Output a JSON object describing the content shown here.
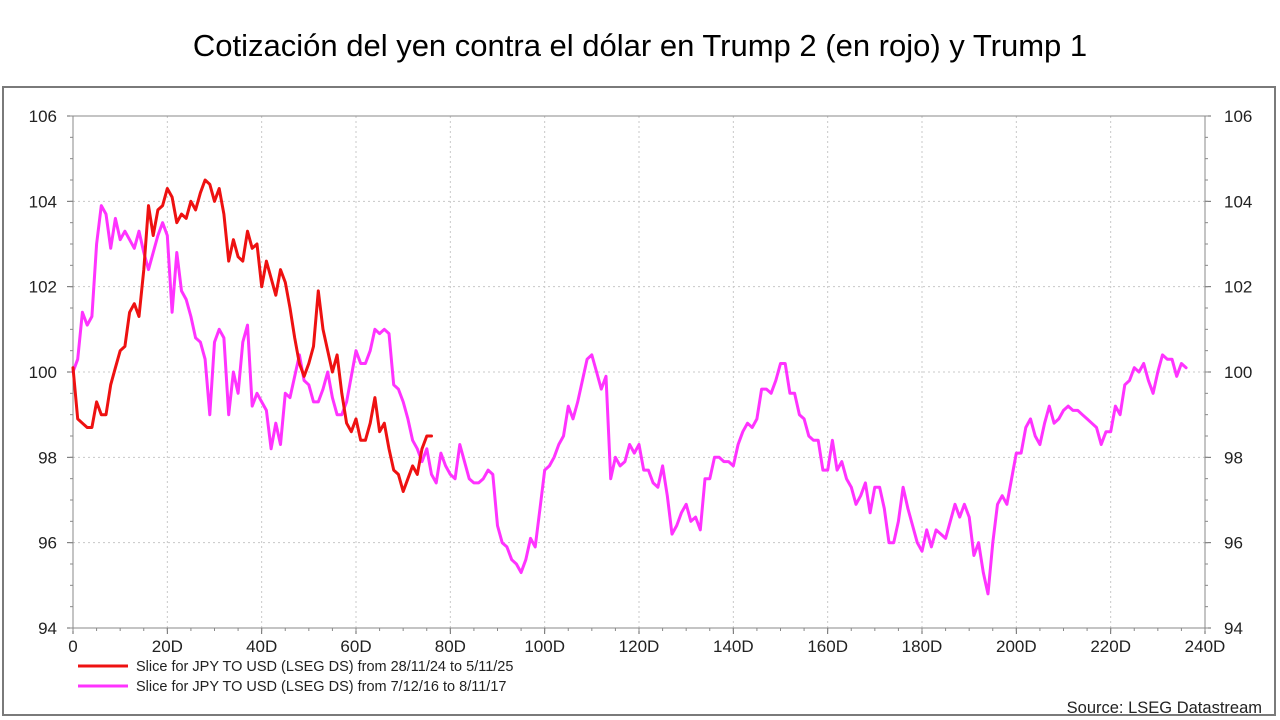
{
  "title": "Cotización del yen contra el dólar en Trump 2 (en rojo) y Trump 1",
  "chart_data": {
    "type": "line",
    "title": "Cotización del yen contra el dólar en Trump 2 (en rojo) y Trump 1",
    "xlabel": "",
    "ylabel": "",
    "xlim": [
      0,
      240
    ],
    "ylim": [
      94,
      106
    ],
    "x_ticks": [
      0,
      20,
      40,
      60,
      80,
      100,
      120,
      140,
      160,
      180,
      200,
      220,
      240
    ],
    "x_tick_labels": [
      "0",
      "20D",
      "40D",
      "60D",
      "80D",
      "100D",
      "120D",
      "140D",
      "160D",
      "180D",
      "200D",
      "220D",
      "240D"
    ],
    "y_ticks": [
      94,
      96,
      98,
      100,
      102,
      104,
      106
    ],
    "y_tick_labels": [
      "94",
      "96",
      "98",
      "100",
      "102",
      "104",
      "106"
    ],
    "grid": true,
    "legend_position": "bottom-left",
    "source": "Source: LSEG Datastream",
    "series": [
      {
        "name": "Slice for JPY TO USD (LSEG DS) from 28/11/24 to 5/11/25",
        "color": "#ee1111",
        "points": [
          [
            0,
            100.1
          ],
          [
            1,
            98.9
          ],
          [
            2,
            98.8
          ],
          [
            3,
            98.7
          ],
          [
            4,
            98.7
          ],
          [
            5,
            99.3
          ],
          [
            6,
            99.0
          ],
          [
            7,
            99.0
          ],
          [
            8,
            99.7
          ],
          [
            9,
            100.1
          ],
          [
            10,
            100.5
          ],
          [
            11,
            100.6
          ],
          [
            12,
            101.4
          ],
          [
            13,
            101.6
          ],
          [
            14,
            101.3
          ],
          [
            15,
            102.4
          ],
          [
            16,
            103.9
          ],
          [
            17,
            103.2
          ],
          [
            18,
            103.8
          ],
          [
            19,
            103.9
          ],
          [
            20,
            104.3
          ],
          [
            21,
            104.1
          ],
          [
            22,
            103.5
          ],
          [
            23,
            103.7
          ],
          [
            24,
            103.6
          ],
          [
            25,
            104.0
          ],
          [
            26,
            103.8
          ],
          [
            27,
            104.2
          ],
          [
            28,
            104.5
          ],
          [
            29,
            104.4
          ],
          [
            30,
            104.0
          ],
          [
            31,
            104.3
          ],
          [
            32,
            103.7
          ],
          [
            33,
            102.6
          ],
          [
            34,
            103.1
          ],
          [
            35,
            102.7
          ],
          [
            36,
            102.6
          ],
          [
            37,
            103.3
          ],
          [
            38,
            102.9
          ],
          [
            39,
            103.0
          ],
          [
            40,
            102.0
          ],
          [
            41,
            102.6
          ],
          [
            42,
            102.2
          ],
          [
            43,
            101.8
          ],
          [
            44,
            102.4
          ],
          [
            45,
            102.1
          ],
          [
            46,
            101.5
          ],
          [
            47,
            100.8
          ],
          [
            48,
            100.2
          ],
          [
            49,
            99.9
          ],
          [
            50,
            100.2
          ],
          [
            51,
            100.6
          ],
          [
            52,
            101.9
          ],
          [
            53,
            101.0
          ],
          [
            54,
            100.5
          ],
          [
            55,
            100.0
          ],
          [
            56,
            100.4
          ],
          [
            57,
            99.5
          ],
          [
            58,
            98.8
          ],
          [
            59,
            98.6
          ],
          [
            60,
            98.9
          ],
          [
            61,
            98.4
          ],
          [
            62,
            98.4
          ],
          [
            63,
            98.8
          ],
          [
            64,
            99.4
          ],
          [
            65,
            98.6
          ],
          [
            66,
            98.8
          ],
          [
            67,
            98.2
          ],
          [
            68,
            97.7
          ],
          [
            69,
            97.6
          ],
          [
            70,
            97.2
          ],
          [
            71,
            97.5
          ],
          [
            72,
            97.8
          ],
          [
            73,
            97.6
          ],
          [
            74,
            98.2
          ],
          [
            75,
            98.5
          ],
          [
            76,
            98.5
          ]
        ]
      },
      {
        "name": "Slice for JPY TO USD (LSEG DS) from 7/12/16 to 8/11/17",
        "color": "#ff33ff",
        "points": [
          [
            0,
            100.0
          ],
          [
            1,
            100.3
          ],
          [
            2,
            101.4
          ],
          [
            3,
            101.1
          ],
          [
            4,
            101.3
          ],
          [
            5,
            103.0
          ],
          [
            6,
            103.9
          ],
          [
            7,
            103.7
          ],
          [
            8,
            102.9
          ],
          [
            9,
            103.6
          ],
          [
            10,
            103.1
          ],
          [
            11,
            103.3
          ],
          [
            12,
            103.1
          ],
          [
            13,
            102.9
          ],
          [
            14,
            103.3
          ],
          [
            15,
            102.8
          ],
          [
            16,
            102.4
          ],
          [
            17,
            102.8
          ],
          [
            18,
            103.2
          ],
          [
            19,
            103.5
          ],
          [
            20,
            103.2
          ],
          [
            21,
            101.4
          ],
          [
            22,
            102.8
          ],
          [
            23,
            101.9
          ],
          [
            24,
            101.7
          ],
          [
            25,
            101.3
          ],
          [
            26,
            100.8
          ],
          [
            27,
            100.7
          ],
          [
            28,
            100.3
          ],
          [
            29,
            99.0
          ],
          [
            30,
            100.7
          ],
          [
            31,
            101.0
          ],
          [
            32,
            100.8
          ],
          [
            33,
            99.0
          ],
          [
            34,
            100.0
          ],
          [
            35,
            99.5
          ],
          [
            36,
            100.7
          ],
          [
            37,
            101.1
          ],
          [
            38,
            99.2
          ],
          [
            39,
            99.5
          ],
          [
            40,
            99.3
          ],
          [
            41,
            99.1
          ],
          [
            42,
            98.2
          ],
          [
            43,
            98.8
          ],
          [
            44,
            98.3
          ],
          [
            45,
            99.5
          ],
          [
            46,
            99.4
          ],
          [
            47,
            99.9
          ],
          [
            48,
            100.4
          ],
          [
            49,
            99.8
          ],
          [
            50,
            99.7
          ],
          [
            51,
            99.3
          ],
          [
            52,
            99.3
          ],
          [
            53,
            99.6
          ],
          [
            54,
            100.0
          ],
          [
            55,
            99.4
          ],
          [
            56,
            99.0
          ],
          [
            57,
            99.0
          ],
          [
            58,
            99.3
          ],
          [
            59,
            99.9
          ],
          [
            60,
            100.5
          ],
          [
            61,
            100.2
          ],
          [
            62,
            100.2
          ],
          [
            63,
            100.5
          ],
          [
            64,
            101.0
          ],
          [
            65,
            100.9
          ],
          [
            66,
            101.0
          ],
          [
            67,
            100.9
          ],
          [
            68,
            99.7
          ],
          [
            69,
            99.6
          ],
          [
            70,
            99.3
          ],
          [
            71,
            98.9
          ],
          [
            72,
            98.4
          ],
          [
            73,
            98.2
          ],
          [
            74,
            97.9
          ],
          [
            75,
            98.2
          ],
          [
            76,
            97.6
          ],
          [
            77,
            97.4
          ],
          [
            78,
            98.1
          ],
          [
            79,
            97.8
          ],
          [
            80,
            97.6
          ],
          [
            81,
            97.5
          ],
          [
            82,
            98.3
          ],
          [
            83,
            97.9
          ],
          [
            84,
            97.5
          ],
          [
            85,
            97.4
          ],
          [
            86,
            97.4
          ],
          [
            87,
            97.5
          ],
          [
            88,
            97.7
          ],
          [
            89,
            97.6
          ],
          [
            90,
            96.4
          ],
          [
            91,
            96.0
          ],
          [
            92,
            95.9
          ],
          [
            93,
            95.6
          ],
          [
            94,
            95.5
          ],
          [
            95,
            95.3
          ],
          [
            96,
            95.6
          ],
          [
            97,
            96.1
          ],
          [
            98,
            95.9
          ],
          [
            99,
            96.8
          ],
          [
            100,
            97.7
          ],
          [
            101,
            97.8
          ],
          [
            102,
            98.0
          ],
          [
            103,
            98.3
          ],
          [
            104,
            98.5
          ],
          [
            105,
            99.2
          ],
          [
            106,
            98.9
          ],
          [
            107,
            99.3
          ],
          [
            108,
            99.8
          ],
          [
            109,
            100.3
          ],
          [
            110,
            100.4
          ],
          [
            111,
            100.0
          ],
          [
            112,
            99.6
          ],
          [
            113,
            99.9
          ],
          [
            114,
            97.5
          ],
          [
            115,
            98.0
          ],
          [
            116,
            97.8
          ],
          [
            117,
            97.9
          ],
          [
            118,
            98.3
          ],
          [
            119,
            98.1
          ],
          [
            120,
            98.3
          ],
          [
            121,
            97.7
          ],
          [
            122,
            97.7
          ],
          [
            123,
            97.4
          ],
          [
            124,
            97.3
          ],
          [
            125,
            97.8
          ],
          [
            126,
            97.1
          ],
          [
            127,
            96.2
          ],
          [
            128,
            96.4
          ],
          [
            129,
            96.7
          ],
          [
            130,
            96.9
          ],
          [
            131,
            96.5
          ],
          [
            132,
            96.6
          ],
          [
            133,
            96.3
          ],
          [
            134,
            97.5
          ],
          [
            135,
            97.5
          ],
          [
            136,
            98.0
          ],
          [
            137,
            98.0
          ],
          [
            138,
            97.9
          ],
          [
            139,
            97.9
          ],
          [
            140,
            97.8
          ],
          [
            141,
            98.3
          ],
          [
            142,
            98.6
          ],
          [
            143,
            98.8
          ],
          [
            144,
            98.7
          ],
          [
            145,
            98.9
          ],
          [
            146,
            99.6
          ],
          [
            147,
            99.6
          ],
          [
            148,
            99.5
          ],
          [
            149,
            99.8
          ],
          [
            150,
            100.2
          ],
          [
            151,
            100.2
          ],
          [
            152,
            99.5
          ],
          [
            153,
            99.5
          ],
          [
            154,
            99.0
          ],
          [
            155,
            98.9
          ],
          [
            156,
            98.5
          ],
          [
            157,
            98.4
          ],
          [
            158,
            98.4
          ],
          [
            159,
            97.7
          ],
          [
            160,
            97.7
          ],
          [
            161,
            98.4
          ],
          [
            162,
            97.7
          ],
          [
            163,
            97.9
          ],
          [
            164,
            97.5
          ],
          [
            165,
            97.3
          ],
          [
            166,
            96.9
          ],
          [
            167,
            97.1
          ],
          [
            168,
            97.4
          ],
          [
            169,
            96.7
          ],
          [
            170,
            97.3
          ],
          [
            171,
            97.3
          ],
          [
            172,
            96.8
          ],
          [
            173,
            96.0
          ],
          [
            174,
            96.0
          ],
          [
            175,
            96.5
          ],
          [
            176,
            97.3
          ],
          [
            177,
            96.8
          ],
          [
            178,
            96.4
          ],
          [
            179,
            96.0
          ],
          [
            180,
            95.8
          ],
          [
            181,
            96.3
          ],
          [
            182,
            95.9
          ],
          [
            183,
            96.3
          ],
          [
            184,
            96.2
          ],
          [
            185,
            96.1
          ],
          [
            186,
            96.5
          ],
          [
            187,
            96.9
          ],
          [
            188,
            96.6
          ],
          [
            189,
            96.9
          ],
          [
            190,
            96.6
          ],
          [
            191,
            95.7
          ],
          [
            192,
            96.0
          ],
          [
            193,
            95.3
          ],
          [
            194,
            94.8
          ],
          [
            195,
            96.0
          ],
          [
            196,
            96.9
          ],
          [
            197,
            97.1
          ],
          [
            198,
            96.9
          ],
          [
            199,
            97.5
          ],
          [
            200,
            98.1
          ],
          [
            201,
            98.1
          ],
          [
            202,
            98.7
          ],
          [
            203,
            98.9
          ],
          [
            204,
            98.5
          ],
          [
            205,
            98.3
          ],
          [
            206,
            98.8
          ],
          [
            207,
            99.2
          ],
          [
            208,
            98.8
          ],
          [
            209,
            98.9
          ],
          [
            210,
            99.1
          ],
          [
            211,
            99.2
          ],
          [
            212,
            99.1
          ],
          [
            213,
            99.1
          ],
          [
            214,
            99.0
          ],
          [
            215,
            98.9
          ],
          [
            216,
            98.8
          ],
          [
            217,
            98.7
          ],
          [
            218,
            98.3
          ],
          [
            219,
            98.6
          ],
          [
            220,
            98.6
          ],
          [
            221,
            99.2
          ],
          [
            222,
            99.0
          ],
          [
            223,
            99.7
          ],
          [
            224,
            99.8
          ],
          [
            225,
            100.1
          ],
          [
            226,
            100.0
          ],
          [
            227,
            100.2
          ],
          [
            228,
            99.8
          ],
          [
            229,
            99.5
          ],
          [
            230,
            100.0
          ],
          [
            231,
            100.4
          ],
          [
            232,
            100.3
          ],
          [
            233,
            100.3
          ],
          [
            234,
            99.9
          ],
          [
            235,
            100.2
          ],
          [
            236,
            100.1
          ]
        ]
      }
    ]
  }
}
